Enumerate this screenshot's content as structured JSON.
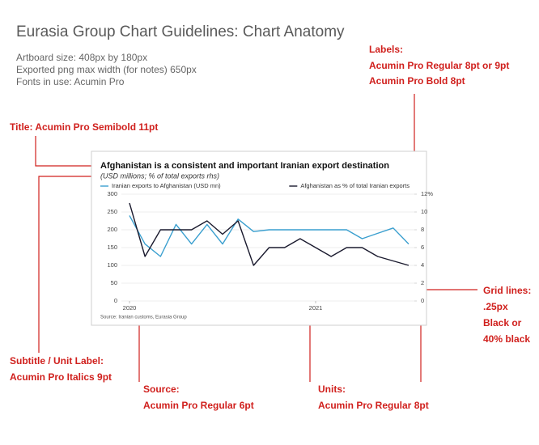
{
  "header": {
    "title": "Eurasia Group Chart Guidelines: Chart Anatomy",
    "lines": [
      "Artboard size: 408px by 180px",
      "Exported png max width (for notes) 650px",
      "Fonts in use: Acumin Pro"
    ]
  },
  "annotations": {
    "labels": [
      "Labels:",
      "Acumin Pro Regular 8pt or 9pt",
      "Acumin Pro Bold 8pt"
    ],
    "title": [
      "Title: Acumin Pro Semibold 11pt"
    ],
    "grid": [
      "Grid lines:",
      ".25px",
      "Black or",
      "40% black"
    ],
    "subtitle": [
      "Subtitle / Unit Label:",
      "Acumin Pro Italics 9pt"
    ],
    "source": [
      "Source:",
      "Acumin Pro Regular 6pt"
    ],
    "units": [
      "Units:",
      "Acumin Pro Regular 8pt"
    ]
  },
  "chart_data": {
    "type": "line",
    "title": "Afghanistan is a consistent and important Iranian export destination",
    "subtitle": "(USD millions; % of total exports rhs)",
    "source": "Source: Iranian customs, Eurasia Group",
    "categories": [
      "2020",
      null,
      null,
      null,
      null,
      null,
      null,
      null,
      null,
      null,
      null,
      null,
      "2021",
      null,
      null,
      null,
      null,
      null,
      null
    ],
    "series": [
      {
        "name": "Iranian exports to Afghanistan (USD mn)",
        "color": "#3a9fcf",
        "values": [
          240,
          160,
          125,
          215,
          160,
          215,
          160,
          230,
          195,
          200,
          200,
          200,
          200,
          200,
          200,
          175,
          190,
          205,
          160
        ]
      },
      {
        "name": "Afghanistan as % of total Iranian exports",
        "color": "#1a1a2e",
        "axis": "y2",
        "values": [
          11,
          5,
          8,
          8,
          8,
          9,
          7.5,
          9,
          4,
          6,
          6,
          7,
          6,
          5,
          6,
          6,
          5,
          4.5,
          4
        ]
      }
    ],
    "ylim": [
      0,
      300
    ],
    "yticks": [
      0,
      50,
      100,
      150,
      200,
      250,
      300
    ],
    "y2lim": [
      0,
      12
    ],
    "y2ticks": [
      0,
      2,
      4,
      6,
      8,
      10,
      {
        "value": 12,
        "label": "12%"
      }
    ],
    "grid": true
  }
}
